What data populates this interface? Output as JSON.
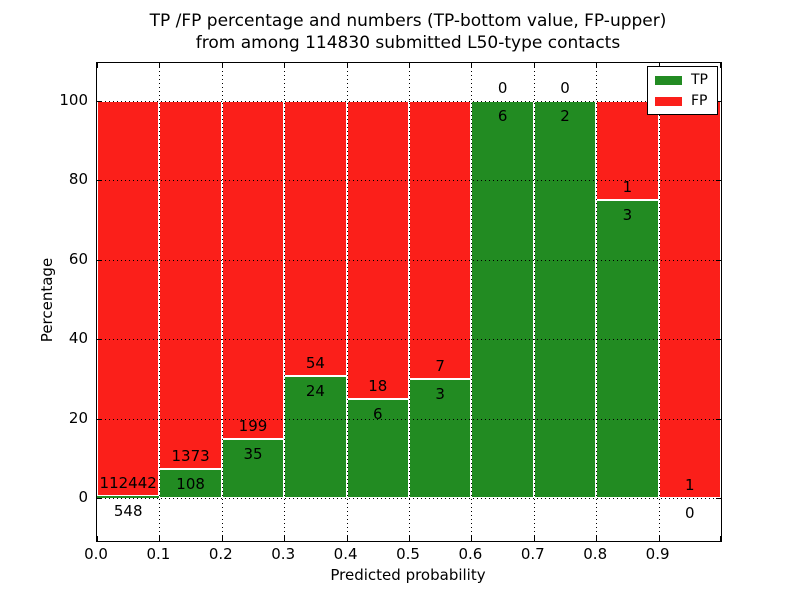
{
  "title": {
    "line1": "TP /FP percentage and numbers (TP-bottom value, FP-upper)",
    "line2": "from among 114830 submitted L50-type contacts"
  },
  "axes": {
    "xlabel": "Predicted probability",
    "ylabel": "Percentage",
    "x_tick_labels": [
      "0.0",
      "0.1",
      "0.2",
      "0.3",
      "0.4",
      "0.5",
      "0.6",
      "0.7",
      "0.8",
      "0.9"
    ],
    "y_tick_labels": [
      "0",
      "20",
      "40",
      "60",
      "80",
      "100"
    ],
    "y_tick_values": [
      0,
      20,
      40,
      60,
      80,
      100
    ]
  },
  "legend": {
    "items": [
      {
        "label": "TP",
        "color": "#228b22"
      },
      {
        "label": "FP",
        "color": "#fb1f1a"
      }
    ]
  },
  "colors": {
    "tp": "#228b22",
    "fp": "#fb1f1a",
    "grid": "#000000",
    "frame": "#000000",
    "text": "#000000",
    "background": "#ffffff"
  },
  "chart_data": {
    "type": "bar",
    "stacked": true,
    "percent_normalized": true,
    "title": "TP /FP percentage and numbers (TP-bottom value, FP-upper) from among 114830 submitted L50-type contacts",
    "xlabel": "Predicted probability",
    "ylabel": "Percentage",
    "total_contacts": 114830,
    "bins": [
      "0.0-0.1",
      "0.1-0.2",
      "0.2-0.3",
      "0.3-0.4",
      "0.4-0.5",
      "0.5-0.6",
      "0.6-0.7",
      "0.7-0.8",
      "0.8-0.9",
      "0.9-1.0"
    ],
    "bin_width": 0.1,
    "series": [
      {
        "name": "TP",
        "color": "#228b22",
        "counts": [
          548,
          108,
          35,
          24,
          6,
          3,
          6,
          2,
          3,
          0
        ]
      },
      {
        "name": "FP",
        "color": "#fb1f1a",
        "counts": [
          112442,
          1373,
          199,
          54,
          18,
          7,
          0,
          0,
          1,
          1
        ]
      }
    ],
    "tp_percent": [
      0.49,
      7.29,
      14.96,
      30.77,
      25.0,
      30.0,
      100.0,
      100.0,
      75.0,
      0.0
    ],
    "xlim": [
      0.0,
      1.0
    ],
    "ylim": [
      -11,
      110
    ],
    "grid": "dotted",
    "grid_above_bars": true,
    "legend_position": "upper-right"
  }
}
